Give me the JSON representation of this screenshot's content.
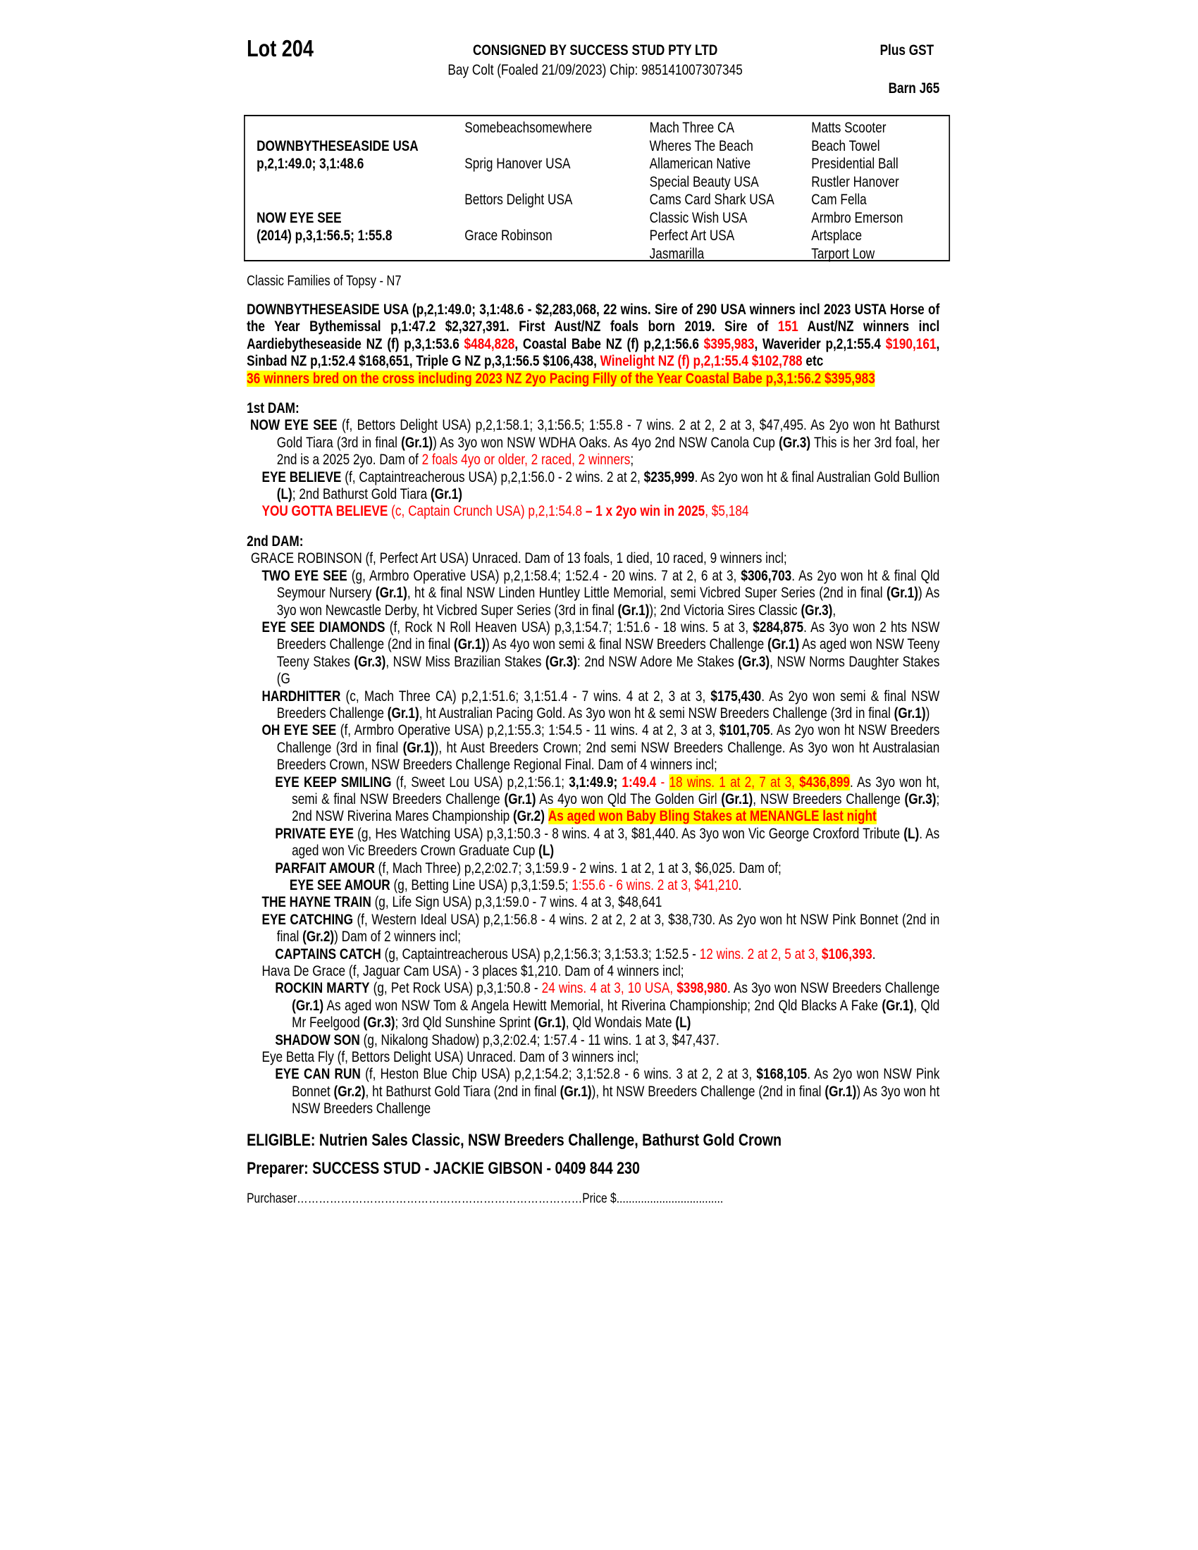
{
  "header": {
    "lot": "Lot 204",
    "consigned": "CONSIGNED BY SUCCESS STUD PTY LTD",
    "description": "Bay Colt (Foaled 21/09/2023) Chip: 985141007307345",
    "gst": "Plus GST",
    "barn": "Barn J65"
  },
  "pedigree": {
    "sire_name": "DOWNBYTHESEASIDE USA",
    "sire_record": "p,2,1:49.0; 3,1:48.6",
    "dam_name": "NOW EYE SEE",
    "dam_record": "(2014) p,3,1:56.5; 1:55.8",
    "gen2": [
      "Somebeachsomewhere",
      "Sprig Hanover USA",
      "Bettors Delight USA",
      "Grace Robinson"
    ],
    "gen3": [
      "Mach Three CA",
      "Wheres The Beach",
      "Allamerican Native",
      "Special Beauty USA",
      "Cams Card Shark USA",
      "Classic Wish USA",
      "Perfect Art USA",
      "Jasmarilla"
    ],
    "gen4": [
      "Matts Scooter",
      "Beach Towel",
      "Presidential Ball",
      "Rustler Hanover",
      "Cam Fella",
      "Armbro Emerson",
      "Artsplace",
      "Tarport Low"
    ]
  },
  "family": "Classic Families of Topsy - N7",
  "colors": {
    "red": "#ff0000",
    "highlight": "#ffff00"
  },
  "sire_section": [
    {
      "level": "L0",
      "segs": [
        [
          "b",
          "DOWNBYTHESEASIDE USA (p,2,1:49.0; 3,1:48.6 - $2,283,068, 22 wins. Sire of 290 USA winners incl 2023 USTA Horse of the Year Bythemissal p,1:47.2 $2,327,391. First Aust/NZ foals born 2019. Sire of "
        ],
        [
          "rb",
          "151"
        ],
        [
          "b",
          " Aust/NZ winners incl Aardiebytheseaside NZ (f) p,3,1:53.6 "
        ],
        [
          "rb",
          "$484,828"
        ],
        [
          "b",
          ", Coastal Babe NZ (f) p,2,1:56.6 "
        ],
        [
          "rb",
          "$395,983"
        ],
        [
          "b",
          ", Waverider p,2,1:55.4 "
        ],
        [
          "rb",
          "$190,161"
        ],
        [
          "b",
          ", Sinbad NZ p,1:52.4 $168,651, Triple G NZ p,3,1:56.5 $106,438, "
        ],
        [
          "rb",
          "Winelight NZ (f) p,2,1:55.4 $102,788"
        ],
        [
          "b",
          " etc"
        ]
      ]
    },
    {
      "level": "L0",
      "segs": [
        [
          "hlb",
          "36 winners bred on the cross including 2023 NZ 2yo Pacing Filly of the Year Coastal Babe p,3,1:56.2 $395,983"
        ]
      ]
    }
  ],
  "dams": [
    {
      "heading": "1st DAM:",
      "paras": [
        {
          "level": "L1",
          "segs": [
            [
              "b",
              "NOW EYE SEE"
            ],
            [
              "n",
              " (f, Bettors Delight USA) p,2,1:58.1; 3,1:56.5; 1:55.8 - 7 wins. 2 at 2, 2 at 3, $47,495. As 2yo won ht Bathurst Gold Tiara (3rd in final "
            ],
            [
              "b",
              "(Gr.1)"
            ],
            [
              "n",
              ") As 3yo won NSW WDHA Oaks. As 4yo 2nd NSW Canola Cup "
            ],
            [
              "b",
              "(Gr.3)"
            ],
            [
              "n",
              " This is her 3rd foal, her 2nd is a 2025 2yo. Dam of "
            ],
            [
              "r",
              "2 foals 4yo or older, 2 raced, 2 winners"
            ],
            [
              "n",
              ";"
            ]
          ]
        },
        {
          "level": "L2",
          "segs": [
            [
              "b",
              "EYE BELIEVE"
            ],
            [
              "n",
              " (f, Captaintreacherous USA) p,2,1:56.0 - 2 wins. 2 at 2, "
            ],
            [
              "b",
              "$235,999"
            ],
            [
              "n",
              ". As 2yo won ht & final Australian Gold Bullion "
            ],
            [
              "b",
              "(L)"
            ],
            [
              "n",
              "; 2nd Bathurst Gold Tiara "
            ],
            [
              "b",
              "(Gr.1)"
            ]
          ]
        },
        {
          "level": "L2",
          "segs": [
            [
              "rb",
              "YOU GOTTA BELIEVE"
            ],
            [
              "r",
              " (c, Captain Crunch USA) p,2,1:54.8 "
            ],
            [
              "rb",
              "– 1 x 2yo win in 2025"
            ],
            [
              "r",
              ", $5,184"
            ]
          ]
        }
      ]
    },
    {
      "heading": "2nd DAM:",
      "paras": [
        {
          "level": "L1g",
          "segs": [
            [
              "n",
              "GRACE ROBINSON (f, Perfect Art USA) Unraced. Dam of 13 foals, 1 died, 10 raced, 9 winners incl;"
            ]
          ]
        },
        {
          "level": "L2",
          "segs": [
            [
              "b",
              "TWO EYE SEE"
            ],
            [
              "n",
              " (g, Armbro Operative USA) p,2,1:58.4; 1:52.4 - 20 wins. 7 at 2, 6 at 3, "
            ],
            [
              "b",
              "$306,703"
            ],
            [
              "n",
              ". As 2yo won ht & final Qld Seymour Nursery "
            ],
            [
              "b",
              "(Gr.1)"
            ],
            [
              "n",
              ", ht & final NSW Linden Huntley Little Memorial, semi Vicbred Super Series (2nd in final "
            ],
            [
              "b",
              "(Gr.1)"
            ],
            [
              "n",
              ") As 3yo won Newcastle Derby, ht Vicbred Super Series (3rd in final "
            ],
            [
              "b",
              "(Gr.1)"
            ],
            [
              "n",
              "); 2nd Victoria Sires Classic "
            ],
            [
              "b",
              "(Gr.3)"
            ],
            [
              "n",
              ","
            ]
          ]
        },
        {
          "level": "L2",
          "segs": [
            [
              "b",
              "EYE SEE DIAMONDS"
            ],
            [
              "n",
              " (f, Rock N Roll Heaven USA) p,3,1:54.7; 1:51.6 - 18 wins. 5 at 3, "
            ],
            [
              "b",
              "$284,875"
            ],
            [
              "n",
              ". As 3yo won 2 hts NSW Breeders Challenge (2nd in final "
            ],
            [
              "b",
              "(Gr.1)"
            ],
            [
              "n",
              ") As 4yo won semi & final NSW Breeders Challenge "
            ],
            [
              "b",
              "(Gr.1)"
            ],
            [
              "n",
              " As aged won NSW Teeny Teeny Stakes "
            ],
            [
              "b",
              "(Gr.3)"
            ],
            [
              "n",
              ", NSW Miss Brazilian Stakes "
            ],
            [
              "b",
              "(Gr.3)"
            ],
            [
              "n",
              ": 2nd NSW Adore Me Stakes "
            ],
            [
              "b",
              "(Gr.3)"
            ],
            [
              "n",
              ", NSW Norms Daughter Stakes (G"
            ]
          ]
        },
        {
          "level": "L2",
          "segs": [
            [
              "b",
              "HARDHITTER"
            ],
            [
              "n",
              " (c, Mach Three CA) p,2,1:51.6; 3,1:51.4 - 7 wins. 4 at 2, 3 at 3, "
            ],
            [
              "b",
              "$175,430"
            ],
            [
              "n",
              ". As 2yo won semi & final NSW Breeders Challenge "
            ],
            [
              "b",
              "(Gr.1)"
            ],
            [
              "n",
              ", ht Australian Pacing Gold. As 3yo won ht & semi NSW Breeders Challenge (3rd in final "
            ],
            [
              "b",
              "(Gr.1)"
            ],
            [
              "n",
              ")"
            ]
          ]
        },
        {
          "level": "L2",
          "segs": [
            [
              "b",
              "OH EYE SEE"
            ],
            [
              "n",
              " (f, Armbro Operative USA) p,2,1:55.3; 1:54.5 - 11 wins. 4 at 2, 3 at 3, "
            ],
            [
              "b",
              "$101,705"
            ],
            [
              "n",
              ". As 2yo won ht NSW Breeders Challenge (3rd in final "
            ],
            [
              "b",
              "(Gr.1)"
            ],
            [
              "n",
              "), ht Aust Breeders Crown; 2nd semi NSW Breeders Challenge. As 3yo won ht Australasian Breeders Crown, NSW Breeders Challenge Regional Final. Dam of 4 winners incl;"
            ]
          ]
        },
        {
          "level": "L3",
          "segs": [
            [
              "b",
              "EYE KEEP SMILING"
            ],
            [
              "n",
              " (f, Sweet Lou USA) p,2,1:56.1; "
            ],
            [
              "b",
              "3,1:49.9;"
            ],
            [
              "n",
              " "
            ],
            [
              "rb",
              "1:49.4"
            ],
            [
              "r",
              " - "
            ],
            [
              "hl",
              "18 wins. 1 at 2, 7 at 3, "
            ],
            [
              "hlb",
              "$436,899"
            ],
            [
              "n",
              ". As 3yo won ht, semi & final NSW Breeders Challenge "
            ],
            [
              "b",
              "(Gr.1)"
            ],
            [
              "n",
              " As 4yo won Qld The Golden Girl "
            ],
            [
              "b",
              "(Gr.1)"
            ],
            [
              "n",
              ", NSW Breeders Challenge "
            ],
            [
              "b",
              "(Gr.3)"
            ],
            [
              "n",
              "; 2nd NSW Riverina Mares Championship "
            ],
            [
              "b",
              "(Gr.2)"
            ],
            [
              "n",
              " "
            ],
            [
              "hlb",
              "As aged won Baby Bling Stakes at MENANGLE last night"
            ]
          ]
        },
        {
          "level": "L3",
          "segs": [
            [
              "b",
              "PRIVATE EYE"
            ],
            [
              "n",
              " (g, Hes Watching USA) p,3,1:50.3 - 8 wins. 4 at 3, $81,440. As 3yo won Vic George Croxford Tribute "
            ],
            [
              "b",
              "(L)"
            ],
            [
              "n",
              ". As aged won Vic Breeders Crown Graduate Cup "
            ],
            [
              "b",
              "(L)"
            ]
          ]
        },
        {
          "level": "L3",
          "segs": [
            [
              "b",
              "PARFAIT AMOUR"
            ],
            [
              "n",
              " (f, Mach Three) p,2,2:02.7; 3,1:59.9 - 2 wins. 1 at 2, 1 at 3, $6,025. Dam of;"
            ]
          ]
        },
        {
          "level": "L4",
          "segs": [
            [
              "b",
              "EYE SEE AMOUR"
            ],
            [
              "n",
              " (g, Betting Line USA) p,3,1:59.5; "
            ],
            [
              "r",
              "1:55.6 - 6 wins. 2 at 3, $41,210"
            ],
            [
              "n",
              "."
            ]
          ]
        },
        {
          "level": "L2",
          "segs": [
            [
              "b",
              "THE HAYNE TRAIN"
            ],
            [
              "n",
              " (g, Life Sign USA) p,3,1:59.0 - 7 wins. 4 at 3, $48,641"
            ]
          ]
        },
        {
          "level": "L2",
          "segs": [
            [
              "b",
              "EYE CATCHING"
            ],
            [
              "n",
              " (f, Western Ideal USA) p,2,1:56.8 - 4 wins. 2 at 2, 2 at 3, $38,730. As 2yo won ht NSW Pink Bonnet (2nd in final "
            ],
            [
              "b",
              "(Gr.2)"
            ],
            [
              "n",
              ") Dam of 2 winners incl;"
            ]
          ]
        },
        {
          "level": "L3",
          "segs": [
            [
              "b",
              "CAPTAINS CATCH"
            ],
            [
              "n",
              " (g, Captaintreacherous USA) p,2,1:56.3; 3,1:53.3; 1:52.5 -  "
            ],
            [
              "r",
              "12 wins. 2 at 2, 5 at 3, "
            ],
            [
              "rb",
              "$106,393"
            ],
            [
              "n",
              "."
            ]
          ]
        },
        {
          "level": "L2",
          "segs": [
            [
              "n",
              "Hava De Grace (f, Jaguar Cam USA) - 3 places $1,210. Dam of 4 winners incl;"
            ]
          ]
        },
        {
          "level": "L3",
          "segs": [
            [
              "b",
              "ROCKIN MARTY"
            ],
            [
              "n",
              " (g, Pet Rock USA) p,3,1:50.8 - "
            ],
            [
              "r",
              "24 wins. 4 at 3, 10 USA, "
            ],
            [
              "rb",
              "$398,980"
            ],
            [
              "n",
              ". As 3yo won NSW Breeders Challenge "
            ],
            [
              "b",
              "(Gr.1)"
            ],
            [
              "n",
              " As aged won NSW Tom & Angela Hewitt Memorial, ht Riverina Championship; 2nd Qld Blacks A Fake "
            ],
            [
              "b",
              "(Gr.1)"
            ],
            [
              "n",
              ", Qld Mr Feelgood "
            ],
            [
              "b",
              "(Gr.3)"
            ],
            [
              "n",
              "; 3rd Qld Sunshine Sprint "
            ],
            [
              "b",
              "(Gr.1)"
            ],
            [
              "n",
              ", Qld Wondais Mate "
            ],
            [
              "b",
              "(L)"
            ]
          ]
        },
        {
          "level": "L3",
          "segs": [
            [
              "b",
              "SHADOW SON"
            ],
            [
              "n",
              " (g, Nikalong Shadow) p,3,2:02.4; 1:57.4 - 11 wins. 1 at 3, $47,437."
            ]
          ]
        },
        {
          "level": "L2",
          "segs": [
            [
              "n",
              "Eye Betta Fly (f, Bettors Delight USA) Unraced. Dam of 3 winners incl;"
            ]
          ]
        },
        {
          "level": "L3",
          "segs": [
            [
              "b",
              "EYE CAN RUN"
            ],
            [
              "n",
              " (f, Heston Blue Chip USA) p,2,1:54.2; 3,1:52.8 - 6 wins. 3 at 2, 2 at 3, "
            ],
            [
              "b",
              "$168,105"
            ],
            [
              "n",
              ". As 2yo won NSW Pink Bonnet "
            ],
            [
              "b",
              "(Gr.2)"
            ],
            [
              "n",
              ", ht Bathurst Gold Tiara (2nd in final "
            ],
            [
              "b",
              "(Gr.1)"
            ],
            [
              "n",
              "), ht NSW Breeders Challenge (2nd in final "
            ],
            [
              "b",
              "(Gr.1)"
            ],
            [
              "n",
              ") As 3yo won ht NSW Breeders Challenge"
            ]
          ]
        }
      ]
    }
  ],
  "footer": {
    "eligible": "ELIGIBLE: Nutrien Sales Classic, NSW Breeders Challenge, Bathurst Gold Crown",
    "preparer": "Preparer: SUCCESS STUD - JACKIE GIBSON - 0409 844 230",
    "purchaser": "Purchaser……………………………………………………………………Price $..................................."
  }
}
